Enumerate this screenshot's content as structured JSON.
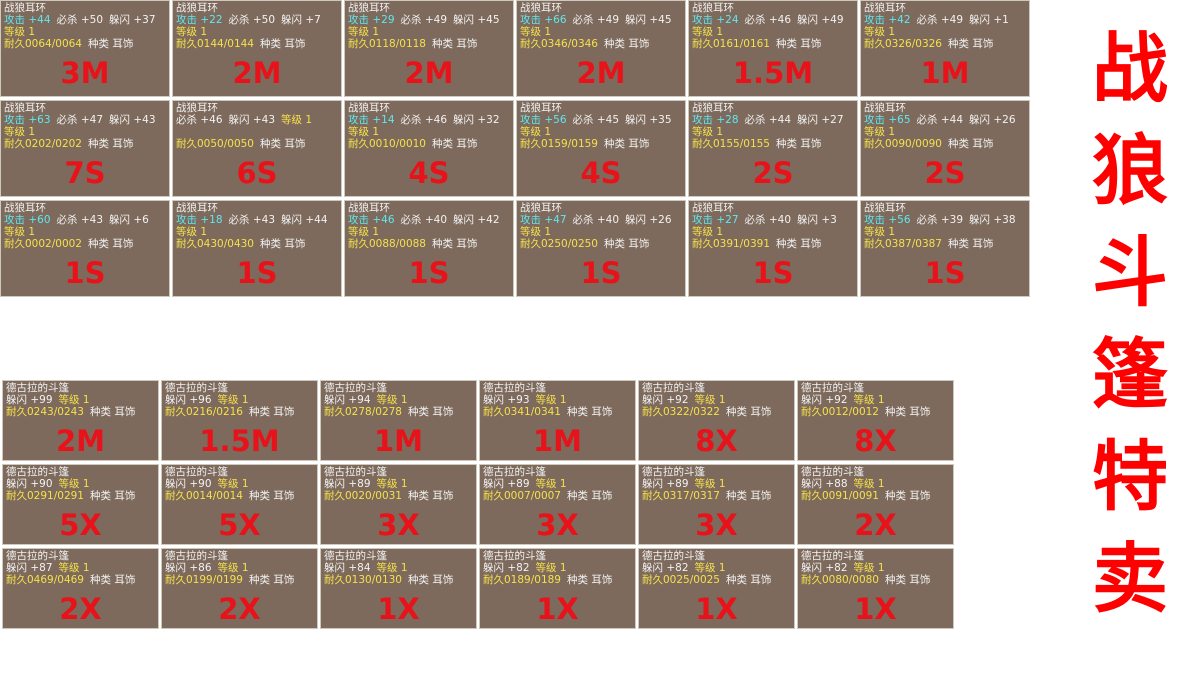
{
  "title": "战狼斗篷特卖",
  "earrings": [
    {
      "name": "战狼耳环",
      "line1": [
        "攻击 +44",
        "必杀 +50",
        "躲闪 +37"
      ],
      "line2": [
        "等级 1"
      ],
      "line3": [
        "耐久0064/0064",
        "种类 耳饰"
      ],
      "price": "3M"
    },
    {
      "name": "战狼耳环",
      "line1": [
        "攻击 +22",
        "必杀 +50",
        "躲闪 +7"
      ],
      "line2": [
        "等级 1"
      ],
      "line3": [
        "耐久0144/0144",
        "种类 耳饰"
      ],
      "price": "2M"
    },
    {
      "name": "战狼耳环",
      "line1": [
        "攻击 +29",
        "必杀 +49",
        "躲闪 +45"
      ],
      "line2": [
        "等级 1"
      ],
      "line3": [
        "耐久0118/0118",
        "种类 耳饰"
      ],
      "price": "2M"
    },
    {
      "name": "战狼耳环",
      "line1": [
        "攻击 +66",
        "必杀 +49",
        "躲闪 +45"
      ],
      "line2": [
        "等级 1"
      ],
      "line3": [
        "耐久0346/0346",
        "种类 耳饰"
      ],
      "price": "2M"
    },
    {
      "name": "战狼耳环",
      "line1": [
        "攻击 +24",
        "必杀 +46",
        "躲闪 +49"
      ],
      "line2": [
        "等级 1"
      ],
      "line3": [
        "耐久0161/0161",
        "种类 耳饰"
      ],
      "price": "1.5M"
    },
    {
      "name": "战狼耳环",
      "line1": [
        "攻击 +42",
        "必杀 +49",
        "躲闪 +1"
      ],
      "line2": [
        "等级 1"
      ],
      "line3": [
        "耐久0326/0326",
        "种类 耳饰"
      ],
      "price": "1M"
    },
    {
      "name": "战狼耳环",
      "line1": [
        "攻击 +63",
        "必杀 +47",
        "躲闪 +43"
      ],
      "line2": [
        "等级 1"
      ],
      "line3": [
        "耐久0202/0202",
        "种类 耳饰"
      ],
      "price": "7S"
    },
    {
      "name": "战狼耳环",
      "line1": [
        "必杀 +46",
        "躲闪 +43",
        "等级 1"
      ],
      "line2": [],
      "line3": [
        "耐久0050/0050",
        "种类 耳饰"
      ],
      "price": "6S"
    },
    {
      "name": "战狼耳环",
      "line1": [
        "攻击 +14",
        "必杀 +46",
        "躲闪 +32"
      ],
      "line2": [
        "等级 1"
      ],
      "line3": [
        "耐久0010/0010",
        "种类 耳饰"
      ],
      "price": "4S"
    },
    {
      "name": "战狼耳环",
      "line1": [
        "攻击 +56",
        "必杀 +45",
        "躲闪 +35"
      ],
      "line2": [
        "等级 1"
      ],
      "line3": [
        "耐久0159/0159",
        "种类 耳饰"
      ],
      "price": "4S"
    },
    {
      "name": "战狼耳环",
      "line1": [
        "攻击 +28",
        "必杀 +44",
        "躲闪 +27"
      ],
      "line2": [
        "等级 1"
      ],
      "line3": [
        "耐久0155/0155",
        "种类 耳饰"
      ],
      "price": "2S"
    },
    {
      "name": "战狼耳环",
      "line1": [
        "攻击 +65",
        "必杀 +44",
        "躲闪 +26"
      ],
      "line2": [
        "等级 1"
      ],
      "line3": [
        "耐久0090/0090",
        "种类 耳饰"
      ],
      "price": "2S"
    },
    {
      "name": "战狼耳环",
      "line1": [
        "攻击 +60",
        "必杀 +43",
        "躲闪 +6"
      ],
      "line2": [
        "等级 1"
      ],
      "line3": [
        "耐久0002/0002",
        "种类 耳饰"
      ],
      "price": "1S"
    },
    {
      "name": "战狼耳环",
      "line1": [
        "攻击 +18",
        "必杀 +43",
        "躲闪 +44"
      ],
      "line2": [
        "等级 1"
      ],
      "line3": [
        "耐久0430/0430",
        "种类 耳饰"
      ],
      "price": "1S"
    },
    {
      "name": "战狼耳环",
      "line1": [
        "攻击 +46",
        "必杀 +40",
        "躲闪 +42"
      ],
      "line2": [
        "等级 1"
      ],
      "line3": [
        "耐久0088/0088",
        "种类 耳饰"
      ],
      "price": "1S"
    },
    {
      "name": "战狼耳环",
      "line1": [
        "攻击 +47",
        "必杀 +40",
        "躲闪 +26"
      ],
      "line2": [
        "等级 1"
      ],
      "line3": [
        "耐久0250/0250",
        "种类 耳饰"
      ],
      "price": "1S"
    },
    {
      "name": "战狼耳环",
      "line1": [
        "攻击 +27",
        "必杀 +40",
        "躲闪 +3"
      ],
      "line2": [
        "等级 1"
      ],
      "line3": [
        "耐久0391/0391",
        "种类 耳饰"
      ],
      "price": "1S"
    },
    {
      "name": "战狼耳环",
      "line1": [
        "攻击 +56",
        "必杀 +39",
        "躲闪 +38"
      ],
      "line2": [
        "等级 1"
      ],
      "line3": [
        "耐久0387/0387",
        "种类 耳饰"
      ],
      "price": "1S"
    }
  ],
  "cloaks": [
    {
      "name": "德古拉的斗篷",
      "line1": [
        "躲闪 +99",
        "等级 1"
      ],
      "line2": [
        "耐久0243/0243",
        "种类 耳饰"
      ],
      "price": "2M"
    },
    {
      "name": "德古拉的斗篷",
      "line1": [
        "躲闪 +96",
        "等级 1"
      ],
      "line2": [
        "耐久0216/0216",
        "种类 耳饰"
      ],
      "price": "1.5M"
    },
    {
      "name": "德古拉的斗篷",
      "line1": [
        "躲闪 +94",
        "等级 1"
      ],
      "line2": [
        "耐久0278/0278",
        "种类 耳饰"
      ],
      "price": "1M"
    },
    {
      "name": "德古拉的斗篷",
      "line1": [
        "躲闪 +93",
        "等级 1"
      ],
      "line2": [
        "耐久0341/0341",
        "种类 耳饰"
      ],
      "price": "1M"
    },
    {
      "name": "德古拉的斗篷",
      "line1": [
        "躲闪 +92",
        "等级 1"
      ],
      "line2": [
        "耐久0322/0322",
        "种类 耳饰"
      ],
      "price": "8X"
    },
    {
      "name": "德古拉的斗篷",
      "line1": [
        "躲闪 +92",
        "等级 1"
      ],
      "line2": [
        "耐久0012/0012",
        "种类 耳饰"
      ],
      "price": "8X"
    },
    {
      "name": "德古拉的斗篷",
      "line1": [
        "躲闪 +90",
        "等级 1"
      ],
      "line2": [
        "耐久0291/0291",
        "种类 耳饰"
      ],
      "price": "5X"
    },
    {
      "name": "德古拉的斗篷",
      "line1": [
        "躲闪 +90",
        "等级 1"
      ],
      "line2": [
        "耐久0014/0014",
        "种类 耳饰"
      ],
      "price": "5X"
    },
    {
      "name": "德古拉的斗篷",
      "line1": [
        "躲闪 +89",
        "等级 1"
      ],
      "line2": [
        "耐久0020/0031",
        "种类 耳饰"
      ],
      "price": "3X"
    },
    {
      "name": "德古拉的斗篷",
      "line1": [
        "躲闪 +89",
        "等级 1"
      ],
      "line2": [
        "耐久0007/0007",
        "种类 耳饰"
      ],
      "price": "3X"
    },
    {
      "name": "德古拉的斗篷",
      "line1": [
        "躲闪 +89",
        "等级 1"
      ],
      "line2": [
        "耐久0317/0317",
        "种类 耳饰"
      ],
      "price": "3X"
    },
    {
      "name": "德古拉的斗篷",
      "line1": [
        "躲闪 +88",
        "等级 1"
      ],
      "line2": [
        "耐久0091/0091",
        "种类 耳饰"
      ],
      "price": "2X"
    },
    {
      "name": "德古拉的斗篷",
      "line1": [
        "躲闪 +87",
        "等级 1"
      ],
      "line2": [
        "耐久0469/0469",
        "种类 耳饰"
      ],
      "price": "2X"
    },
    {
      "name": "德古拉的斗篷",
      "line1": [
        "躲闪 +86",
        "等级 1"
      ],
      "line2": [
        "耐久0199/0199",
        "种类 耳饰"
      ],
      "price": "2X"
    },
    {
      "name": "德古拉的斗篷",
      "line1": [
        "躲闪 +84",
        "等级 1"
      ],
      "line2": [
        "耐久0130/0130",
        "种类 耳饰"
      ],
      "price": "1X"
    },
    {
      "name": "德古拉的斗篷",
      "line1": [
        "躲闪 +82",
        "等级 1"
      ],
      "line2": [
        "耐久0189/0189",
        "种类 耳饰"
      ],
      "price": "1X"
    },
    {
      "name": "德古拉的斗篷",
      "line1": [
        "躲闪 +82",
        "等级 1"
      ],
      "line2": [
        "耐久0025/0025",
        "种类 耳饰"
      ],
      "price": "1X"
    },
    {
      "name": "德古拉的斗篷",
      "line1": [
        "躲闪 +82",
        "等级 1"
      ],
      "line2": [
        "耐久0080/0080",
        "种类 耳饰"
      ],
      "price": "1X"
    }
  ]
}
